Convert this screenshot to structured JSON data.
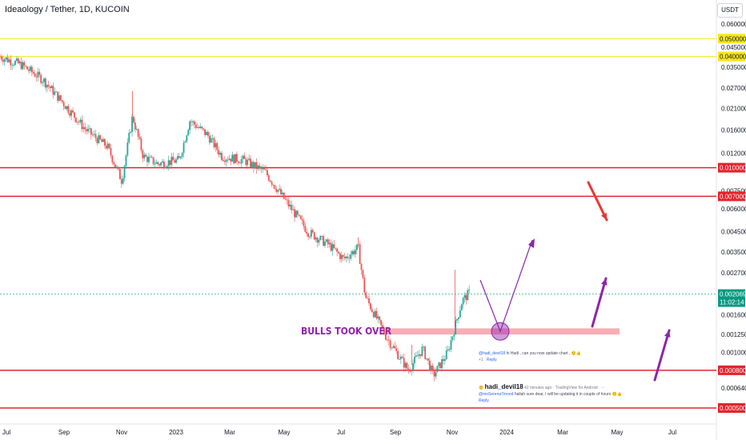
{
  "header": {
    "title": "Ideaology / Tether, 1D, KUCOIN",
    "currency": "USDT"
  },
  "annotation": {
    "label": "BULLS TOOK OVER"
  },
  "comments": [
    {
      "mention": "@hadi_devil18",
      "text": " hi Hadi , can you now update chart , 🙂👍",
      "meta": "+1",
      "reply": "Reply"
    },
    {
      "user": "hadi_devil18",
      "meta": "42 minutes ago · TradingView for Android · ⋯",
      "mention": "@moSerena7mood",
      "text": " hallah sure dear, I will be updating it in couple of hours 🙂👍",
      "reply": "Reply"
    }
  ],
  "colors": {
    "up": "#26a69a",
    "down": "#ef5350",
    "yellow_line": "#f5e71b",
    "red_line": "#e3242b",
    "zone": "#f5a0a7",
    "purple": "#8e24aa",
    "red_arrow": "#e53935",
    "price_tag": "#089981"
  },
  "chart_data": {
    "type": "candlestick",
    "scale": "log",
    "x_ticks": [
      "Jul",
      "Sep",
      "Nov",
      "2023",
      "Mar",
      "May",
      "Jul",
      "Sep",
      "Nov",
      "2024",
      "Mar",
      "May",
      "Jul"
    ],
    "y_ticks": [
      "0.060000",
      "0.045000",
      "0.035000",
      "0.027000",
      "0.021000",
      "0.016000",
      "0.012000",
      "0.007500",
      "0.006000",
      "0.004500",
      "0.003500",
      "0.002700",
      "0.001600",
      "0.001250",
      "0.001000",
      "0.000640"
    ],
    "y_tick_values": [
      0.06,
      0.045,
      0.035,
      0.027,
      0.021,
      0.016,
      0.012,
      0.0075,
      0.006,
      0.0045,
      0.0035,
      0.0027,
      0.0016,
      0.00125,
      0.001,
      0.00064
    ],
    "horizontal_levels": [
      {
        "value": 0.05,
        "label": "0.050000",
        "color": "yellow"
      },
      {
        "value": 0.04,
        "label": "0.040000",
        "color": "yellow"
      },
      {
        "value": 0.01,
        "label": "0.010000",
        "color": "red"
      },
      {
        "value": 0.007,
        "label": "0.007000",
        "color": "red"
      },
      {
        "value": 0.0008,
        "label": "0.000800",
        "color": "red"
      },
      {
        "value": 0.0005,
        "label": "0.000500",
        "color": "red"
      }
    ],
    "current_price": {
      "value": 0.002069,
      "label": "0.002069",
      "countdown": "11:02:14"
    },
    "support_zone": {
      "low": 0.00125,
      "high": 0.00135
    },
    "price_path": [
      {
        "x": 0.0,
        "y": 0.04
      },
      {
        "x": 0.03,
        "y": 0.036
      },
      {
        "x": 0.06,
        "y": 0.03
      },
      {
        "x": 0.09,
        "y": 0.022
      },
      {
        "x": 0.12,
        "y": 0.016
      },
      {
        "x": 0.15,
        "y": 0.013
      },
      {
        "x": 0.17,
        "y": 0.0085
      },
      {
        "x": 0.185,
        "y": 0.019
      },
      {
        "x": 0.2,
        "y": 0.0115
      },
      {
        "x": 0.22,
        "y": 0.0105
      },
      {
        "x": 0.25,
        "y": 0.011
      },
      {
        "x": 0.265,
        "y": 0.018
      },
      {
        "x": 0.29,
        "y": 0.015
      },
      {
        "x": 0.31,
        "y": 0.0115
      },
      {
        "x": 0.34,
        "y": 0.011
      },
      {
        "x": 0.37,
        "y": 0.0095
      },
      {
        "x": 0.4,
        "y": 0.0065
      },
      {
        "x": 0.43,
        "y": 0.0045
      },
      {
        "x": 0.46,
        "y": 0.0038
      },
      {
        "x": 0.48,
        "y": 0.0032
      },
      {
        "x": 0.5,
        "y": 0.0037
      },
      {
        "x": 0.51,
        "y": 0.002
      },
      {
        "x": 0.54,
        "y": 0.0012
      },
      {
        "x": 0.57,
        "y": 0.0008
      },
      {
        "x": 0.59,
        "y": 0.00105
      },
      {
        "x": 0.605,
        "y": 0.00075
      },
      {
        "x": 0.625,
        "y": 0.001
      },
      {
        "x": 0.645,
        "y": 0.0019
      },
      {
        "x": 0.655,
        "y": 0.0021
      }
    ]
  }
}
